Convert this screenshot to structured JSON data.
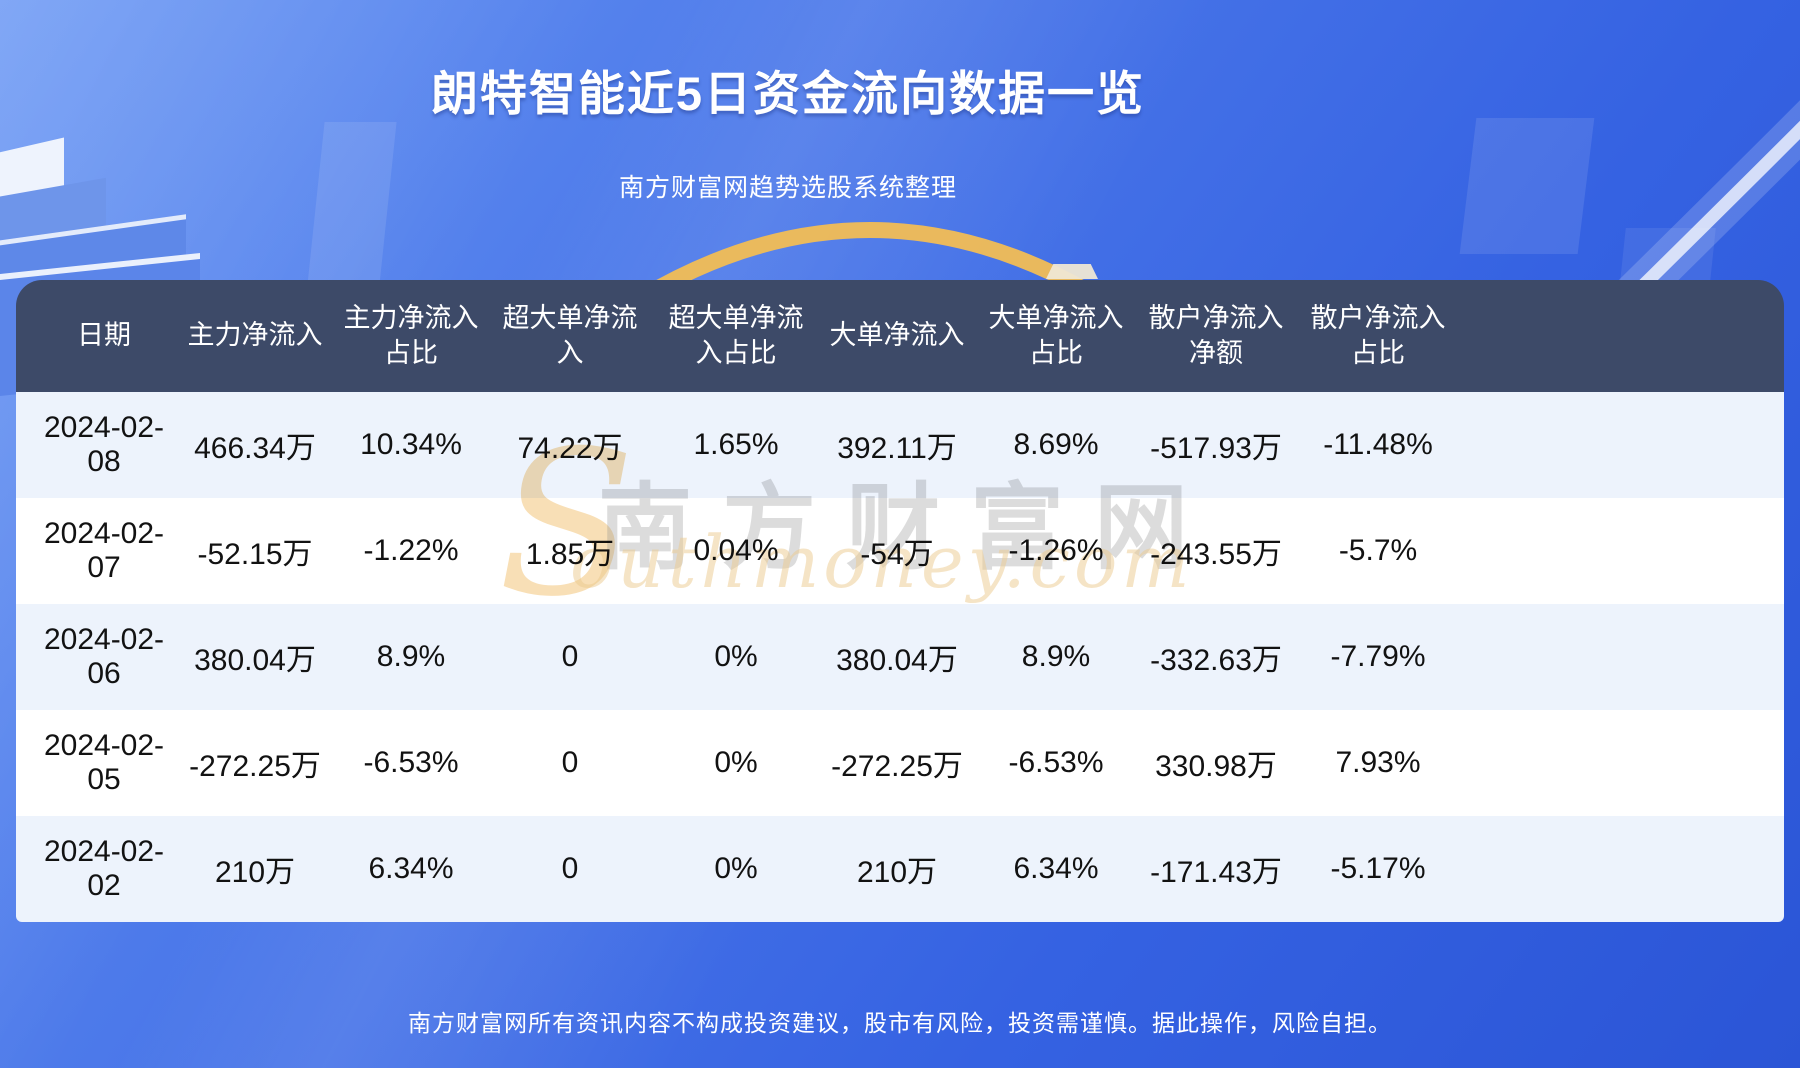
{
  "page": {
    "title": "朗特智能近5日资金流向数据一览",
    "subtitle": "南方财富网趋势选股系统整理",
    "footer": "南方财富网所有资讯内容不构成投资建议，股市有风险，投资需谨慎。据此操作，风险自担。"
  },
  "watermark": {
    "initial": "S",
    "cn": "南方财富网",
    "en": "outhmoney.com"
  },
  "colors": {
    "background_top": "#6b98f4",
    "background_bottom": "#2b55d6",
    "header_bg": "#3d4a68",
    "row_alt_bg": "#edf3fc",
    "row_bg": "#ffffff",
    "accent_gold": "#f2bd55",
    "swoosh_white": "#ffffff",
    "body_text": "#121212",
    "footer_text": "#ffffff"
  },
  "table": {
    "header_labels": [
      "日期",
      "主力净流入",
      "主力净流入\n占比",
      "超大单净流\n入",
      "超大单净流\n入占比",
      "大单净流入",
      "大单净流入\n占比",
      "散户净流入\n净额",
      "散户净流入\n占比"
    ]
  },
  "chart_data": {
    "type": "table",
    "title": "朗特智能近5日资金流向数据一览",
    "subtitle": "南方财富网趋势选股系统整理",
    "columns": [
      "日期",
      "主力净流入",
      "主力净流入占比",
      "超大单净流入",
      "超大单净流入占比",
      "大单净流入",
      "大单净流入占比",
      "散户净流入净额",
      "散户净流入占比"
    ],
    "rows": [
      [
        "2024-02-08",
        "466.34万",
        "10.34%",
        "74.22万",
        "1.65%",
        "392.11万",
        "8.69%",
        "-517.93万",
        "-11.48%"
      ],
      [
        "2024-02-07",
        "-52.15万",
        "-1.22%",
        "1.85万",
        "0.04%",
        "-54万",
        "-1.26%",
        "-243.55万",
        "-5.7%"
      ],
      [
        "2024-02-06",
        "380.04万",
        "8.9%",
        "0",
        "0%",
        "380.04万",
        "8.9%",
        "-332.63万",
        "-7.79%"
      ],
      [
        "2024-02-05",
        "-272.25万",
        "-6.53%",
        "0",
        "0%",
        "-272.25万",
        "-6.53%",
        "330.98万",
        "7.93%"
      ],
      [
        "2024-02-02",
        "210万",
        "6.34%",
        "0",
        "0%",
        "210万",
        "6.34%",
        "-171.43万",
        "-5.17%"
      ]
    ]
  }
}
